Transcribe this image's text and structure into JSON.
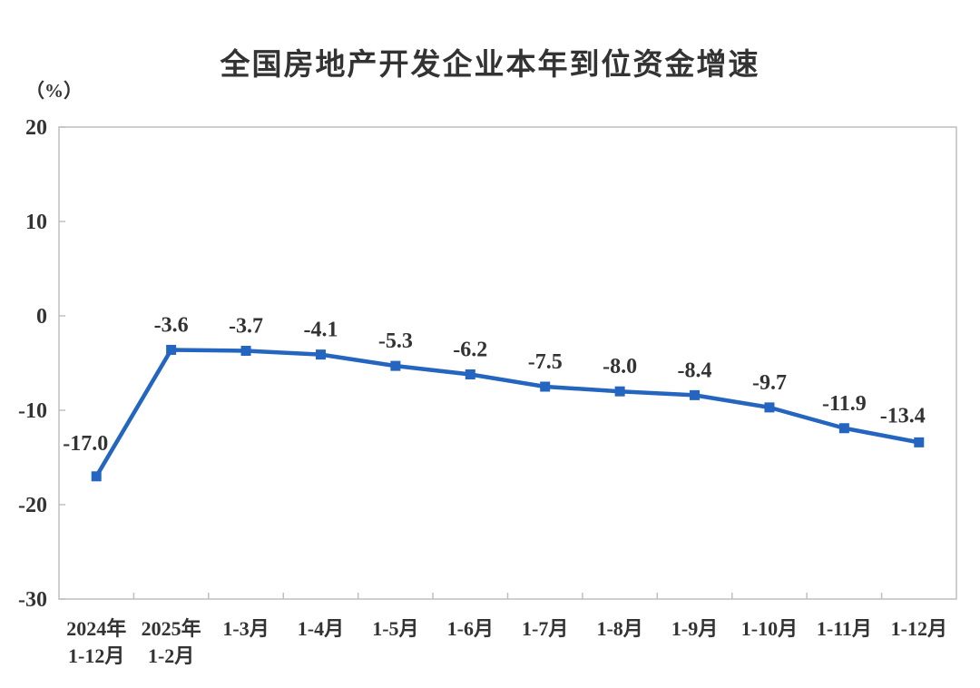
{
  "chart_data": {
    "type": "line",
    "title": "全国房地产开发企业本年到位资金增速",
    "ylabel_unit": "（%）",
    "categories": [
      [
        "2024年",
        "1-12月"
      ],
      [
        "2025年",
        "1-2月"
      ],
      [
        "1-3月"
      ],
      [
        "1-4月"
      ],
      [
        "1-5月"
      ],
      [
        "1-6月"
      ],
      [
        "1-7月"
      ],
      [
        "1-8月"
      ],
      [
        "1-9月"
      ],
      [
        "1-10月"
      ],
      [
        "1-11月"
      ],
      [
        "1-12月"
      ]
    ],
    "values": [
      -17.0,
      -3.6,
      -3.7,
      -4.1,
      -5.3,
      -6.2,
      -7.5,
      -8.0,
      -8.4,
      -9.7,
      -11.9,
      -13.4
    ],
    "data_labels": [
      "-17.0",
      "-3.6",
      "-3.7",
      "-4.1",
      "-5.3",
      "-6.2",
      "-7.5",
      "-8.0",
      "-8.4",
      "-9.7",
      "-11.9",
      "-13.4"
    ],
    "xlabel": "",
    "ylabel": "",
    "ylim": [
      -30,
      20
    ],
    "yticks": [
      20,
      10,
      0,
      -10,
      -20,
      -30
    ],
    "grid": false,
    "legend_position": "none",
    "colors": {
      "line": "#2365BF",
      "marker": "#2365BF",
      "axis": "#BFBFBF",
      "title_text": "#333333",
      "tick_text": "#333333",
      "data_label_text": "#333333"
    }
  }
}
